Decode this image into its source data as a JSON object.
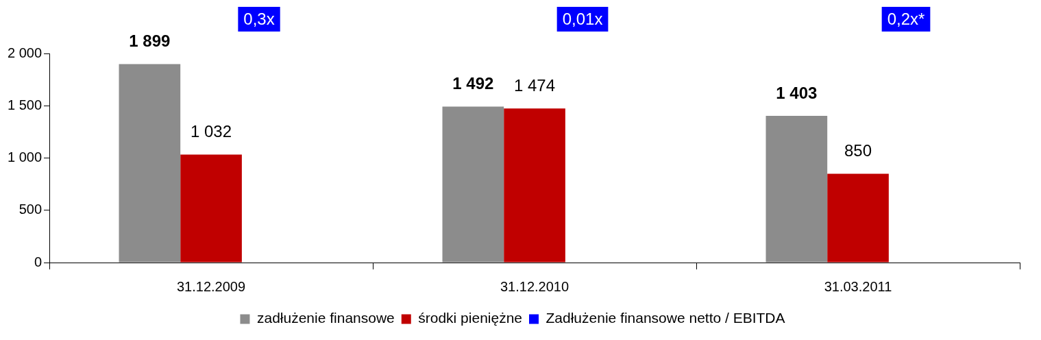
{
  "chart_data": {
    "type": "bar",
    "categories": [
      "31.12.2009",
      "31.12.2010",
      "31.03.2011"
    ],
    "series": [
      {
        "name": "zadłużenie finansowe",
        "color": "#8c8c8c",
        "values": [
          1899,
          1492,
          1403
        ],
        "value_labels": [
          "1 899",
          "1 492",
          "1 403"
        ]
      },
      {
        "name": "środki pieniężne",
        "color": "#c00000",
        "values": [
          1032,
          1474,
          850
        ],
        "value_labels": [
          "1 032",
          "1 474",
          "850"
        ]
      },
      {
        "name": "Zadłużenie finansowe netto / EBITDA",
        "color": "#0000ff",
        "values": [
          null,
          null,
          null
        ],
        "value_labels": [
          "0,3x",
          "0,01x",
          "0,2x*"
        ]
      }
    ],
    "ylim": [
      0,
      2000
    ],
    "yticks": [
      {
        "value": 0,
        "label": "0"
      },
      {
        "value": 500,
        "label": "500"
      },
      {
        "value": 1000,
        "label": "1 000"
      },
      {
        "value": 1500,
        "label": "1 500"
      },
      {
        "value": 2000,
        "label": "2 000"
      }
    ],
    "grid": false,
    "legend": "bottom"
  }
}
